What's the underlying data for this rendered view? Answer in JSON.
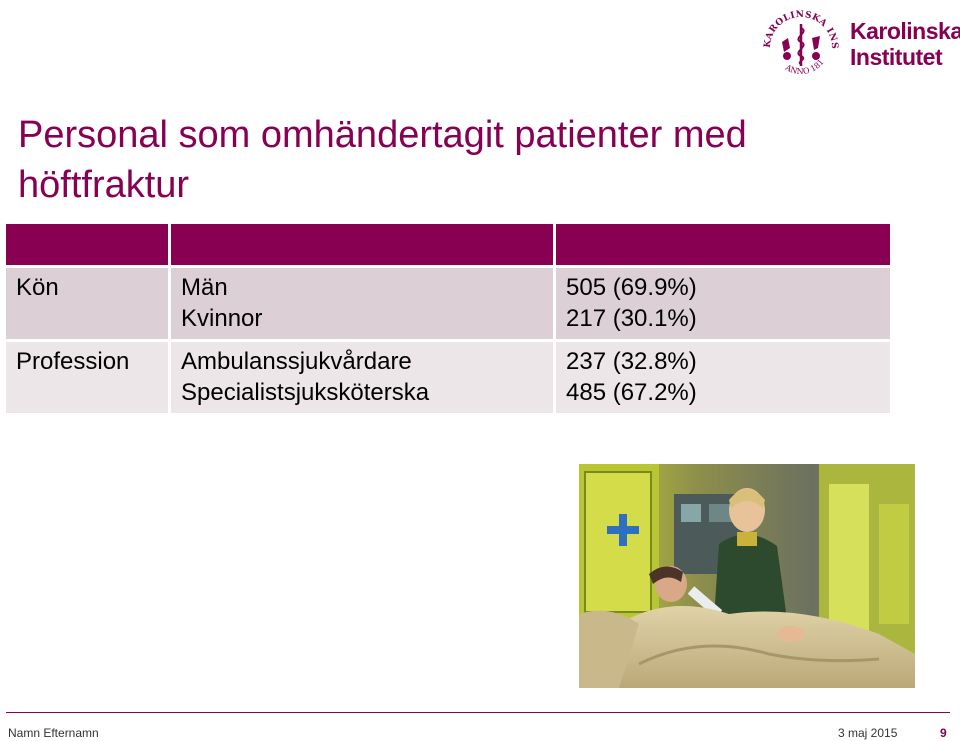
{
  "logo": {
    "seal_text": "KAROLINSKA INSTITUTET · ANNO 1810 ·",
    "name_line1": "Karolinska",
    "name_line2": "Institutet"
  },
  "slide": {
    "title": "Personal som omhändertagit patienter med höftfraktur"
  },
  "table": {
    "header_color": "#870052",
    "rows": [
      {
        "label": "Kön",
        "items": [
          "Män",
          "Kvinnor"
        ],
        "values": [
          "505 (69.9%)",
          "217 (30.1%)"
        ]
      },
      {
        "label": "Profession",
        "items": [
          "Ambulanssjukvårdare",
          "Specialistsjuksköterska"
        ],
        "values": [
          "237 (32.8%)",
          "485 (67.2%)"
        ]
      }
    ]
  },
  "photo": {
    "subject": "ambulance-patient-photo"
  },
  "footer": {
    "author": "Namn Efternamn",
    "date": "3 maj 2015",
    "page": "9"
  },
  "colors": {
    "accent": "#870052",
    "row_a": "#dcd0d6",
    "row_b": "#ece6e9"
  }
}
